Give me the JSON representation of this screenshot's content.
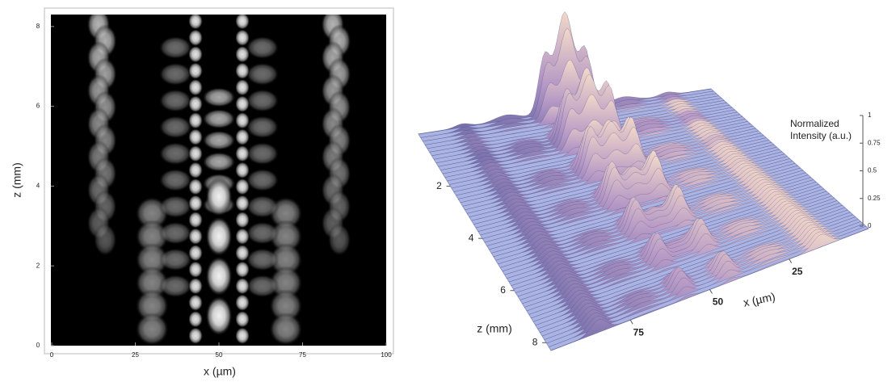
{
  "chart_data": [
    {
      "type": "contour",
      "xlabel": "x (µm)",
      "ylabel": "z (mm)",
      "xlim": [
        0,
        100
      ],
      "ylim": [
        0,
        8.3
      ],
      "xticks": [
        0,
        25,
        50,
        75,
        100
      ],
      "yticks": [
        0,
        2,
        4,
        6,
        8
      ]
    },
    {
      "type": "surface",
      "xlabel": "x (µm)",
      "ylabel": "z (mm)",
      "zlabel": [
        "Normalized",
        "Intensity (a.u.)"
      ],
      "xlim": [
        0,
        100
      ],
      "ylim": [
        0,
        8.3
      ],
      "zlim": [
        0,
        1
      ],
      "xticks": [
        25,
        50,
        75
      ],
      "yticks": [
        2,
        4,
        6,
        8
      ],
      "zticks": [
        0,
        0.25,
        0.5,
        0.75,
        1
      ]
    }
  ]
}
